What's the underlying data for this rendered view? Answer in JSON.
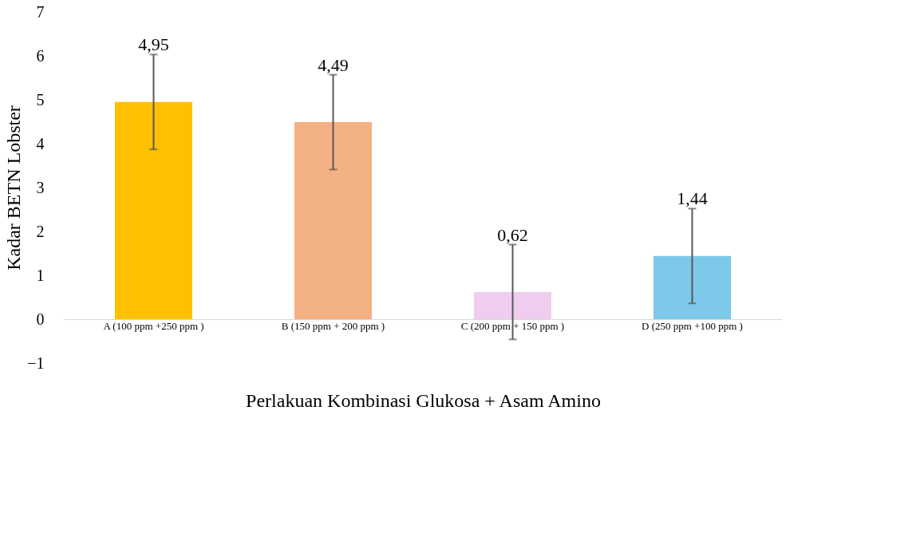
{
  "chart_data": {
    "type": "bar",
    "xlabel": "Perlakuan Kombinasi Glukosa + Asam Amino",
    "ylabel": "Kadar BETN  Lobster",
    "categories": [
      "A (100 ppm +250 ppm )",
      "B (150 ppm + 200 ppm )",
      "C (200 ppm + 150 ppm )",
      "D (250 ppm +100 ppm )"
    ],
    "values": [
      4.95,
      4.49,
      0.62,
      1.44
    ],
    "colors": [
      "#ffc000",
      "#f4b183",
      "#f0cdee",
      "#7ec8ea"
    ],
    "errors": [
      1.08,
      1.08,
      1.08,
      1.08
    ],
    "value_labels": [
      "4,95",
      "4,49",
      "0,62",
      "1,44"
    ],
    "ylim": [
      -1,
      7
    ],
    "yticks": [
      -1,
      0,
      1,
      2,
      3,
      4,
      5,
      6,
      7
    ],
    "grid": false
  }
}
